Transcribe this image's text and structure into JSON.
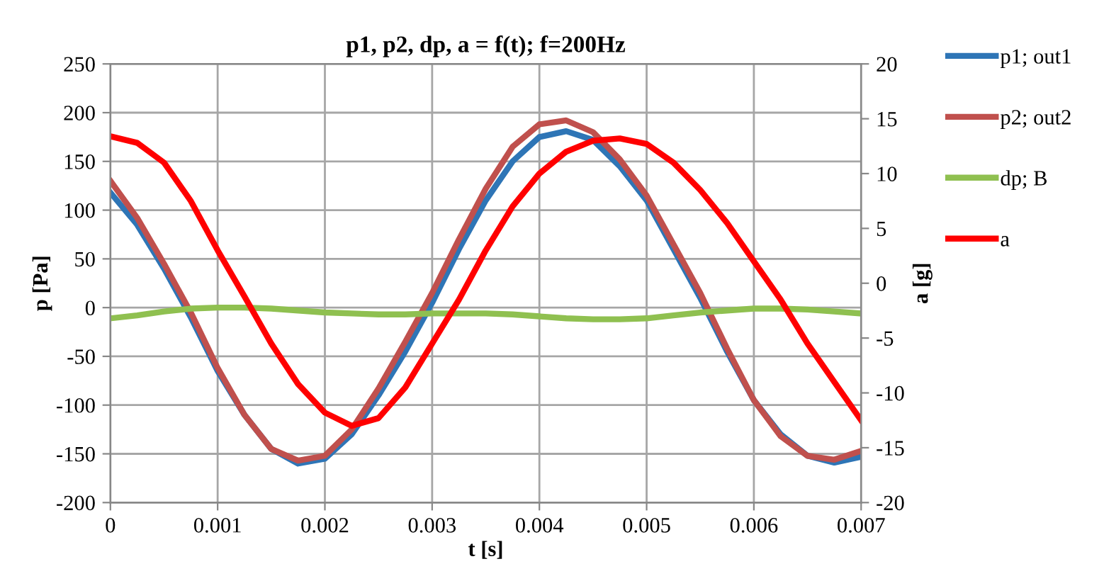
{
  "chart_data": {
    "type": "line",
    "title": "p1, p2, dp, a = f(t); f=200Hz",
    "xlabel": "t [s]",
    "ylabel": "p [Pa]",
    "y2label": "a [g]",
    "x": [
      0,
      0.00025,
      0.0005,
      0.00075,
      0.001,
      0.00125,
      0.0015,
      0.00175,
      0.002,
      0.00225,
      0.0025,
      0.00275,
      0.003,
      0.00325,
      0.0035,
      0.00375,
      0.004,
      0.00425,
      0.0045,
      0.00475,
      0.005,
      0.00525,
      0.0055,
      0.00575,
      0.006,
      0.00625,
      0.0065,
      0.00675,
      0.007
    ],
    "series": [
      {
        "name": "p1; out1",
        "color": "#2e75b6",
        "values": [
          118,
          85,
          40,
          -10,
          -65,
          -110,
          -145,
          -160,
          -155,
          -130,
          -90,
          -45,
          5,
          60,
          110,
          150,
          175,
          181,
          172,
          145,
          110,
          60,
          10,
          -45,
          -95,
          -130,
          -152,
          -159,
          -153
        ]
      },
      {
        "name": "p2; out2",
        "color": "#c0504d",
        "values": [
          130,
          92,
          45,
          -5,
          -62,
          -110,
          -145,
          -157,
          -152,
          -125,
          -83,
          -35,
          15,
          70,
          122,
          165,
          188,
          192,
          180,
          152,
          115,
          65,
          15,
          -42,
          -95,
          -132,
          -152,
          -156,
          -147
        ]
      },
      {
        "name": "dp; B",
        "color": "#8fc050",
        "values": [
          -11,
          -8,
          -4,
          -1,
          0,
          0,
          -1,
          -3,
          -5,
          -6,
          -7,
          -7,
          -6,
          -6,
          -6,
          -7,
          -9,
          -11,
          -12,
          -12,
          -11,
          -8,
          -5,
          -3,
          -1,
          -1,
          -2,
          -4,
          -6
        ]
      },
      {
        "name": "a",
        "color": "#ff0000",
        "axis": "y2",
        "values": [
          13.4,
          12.8,
          11,
          7.5,
          3,
          -1.2,
          -5.5,
          -9.2,
          -11.8,
          -13,
          -12.3,
          -9.5,
          -5.5,
          -1.5,
          3,
          7,
          10,
          12,
          13,
          13.2,
          12.7,
          11,
          8.5,
          5.5,
          2,
          -1.5,
          -5.5,
          -9,
          -12.5
        ]
      }
    ],
    "xlim": [
      0,
      0.007
    ],
    "xticks": [
      0,
      0.001,
      0.002,
      0.003,
      0.004,
      0.005,
      0.006,
      0.007
    ],
    "ylim": [
      -200,
      250
    ],
    "yticks": [
      -200,
      -150,
      -100,
      -50,
      0,
      50,
      100,
      150,
      200,
      250
    ],
    "y2lim": [
      -20,
      20
    ],
    "y2ticks": [
      -20,
      -15,
      -10,
      -5,
      0,
      5,
      10,
      15,
      20
    ],
    "grid": true,
    "legend": "right",
    "marker": "none",
    "line_style": "solid"
  }
}
